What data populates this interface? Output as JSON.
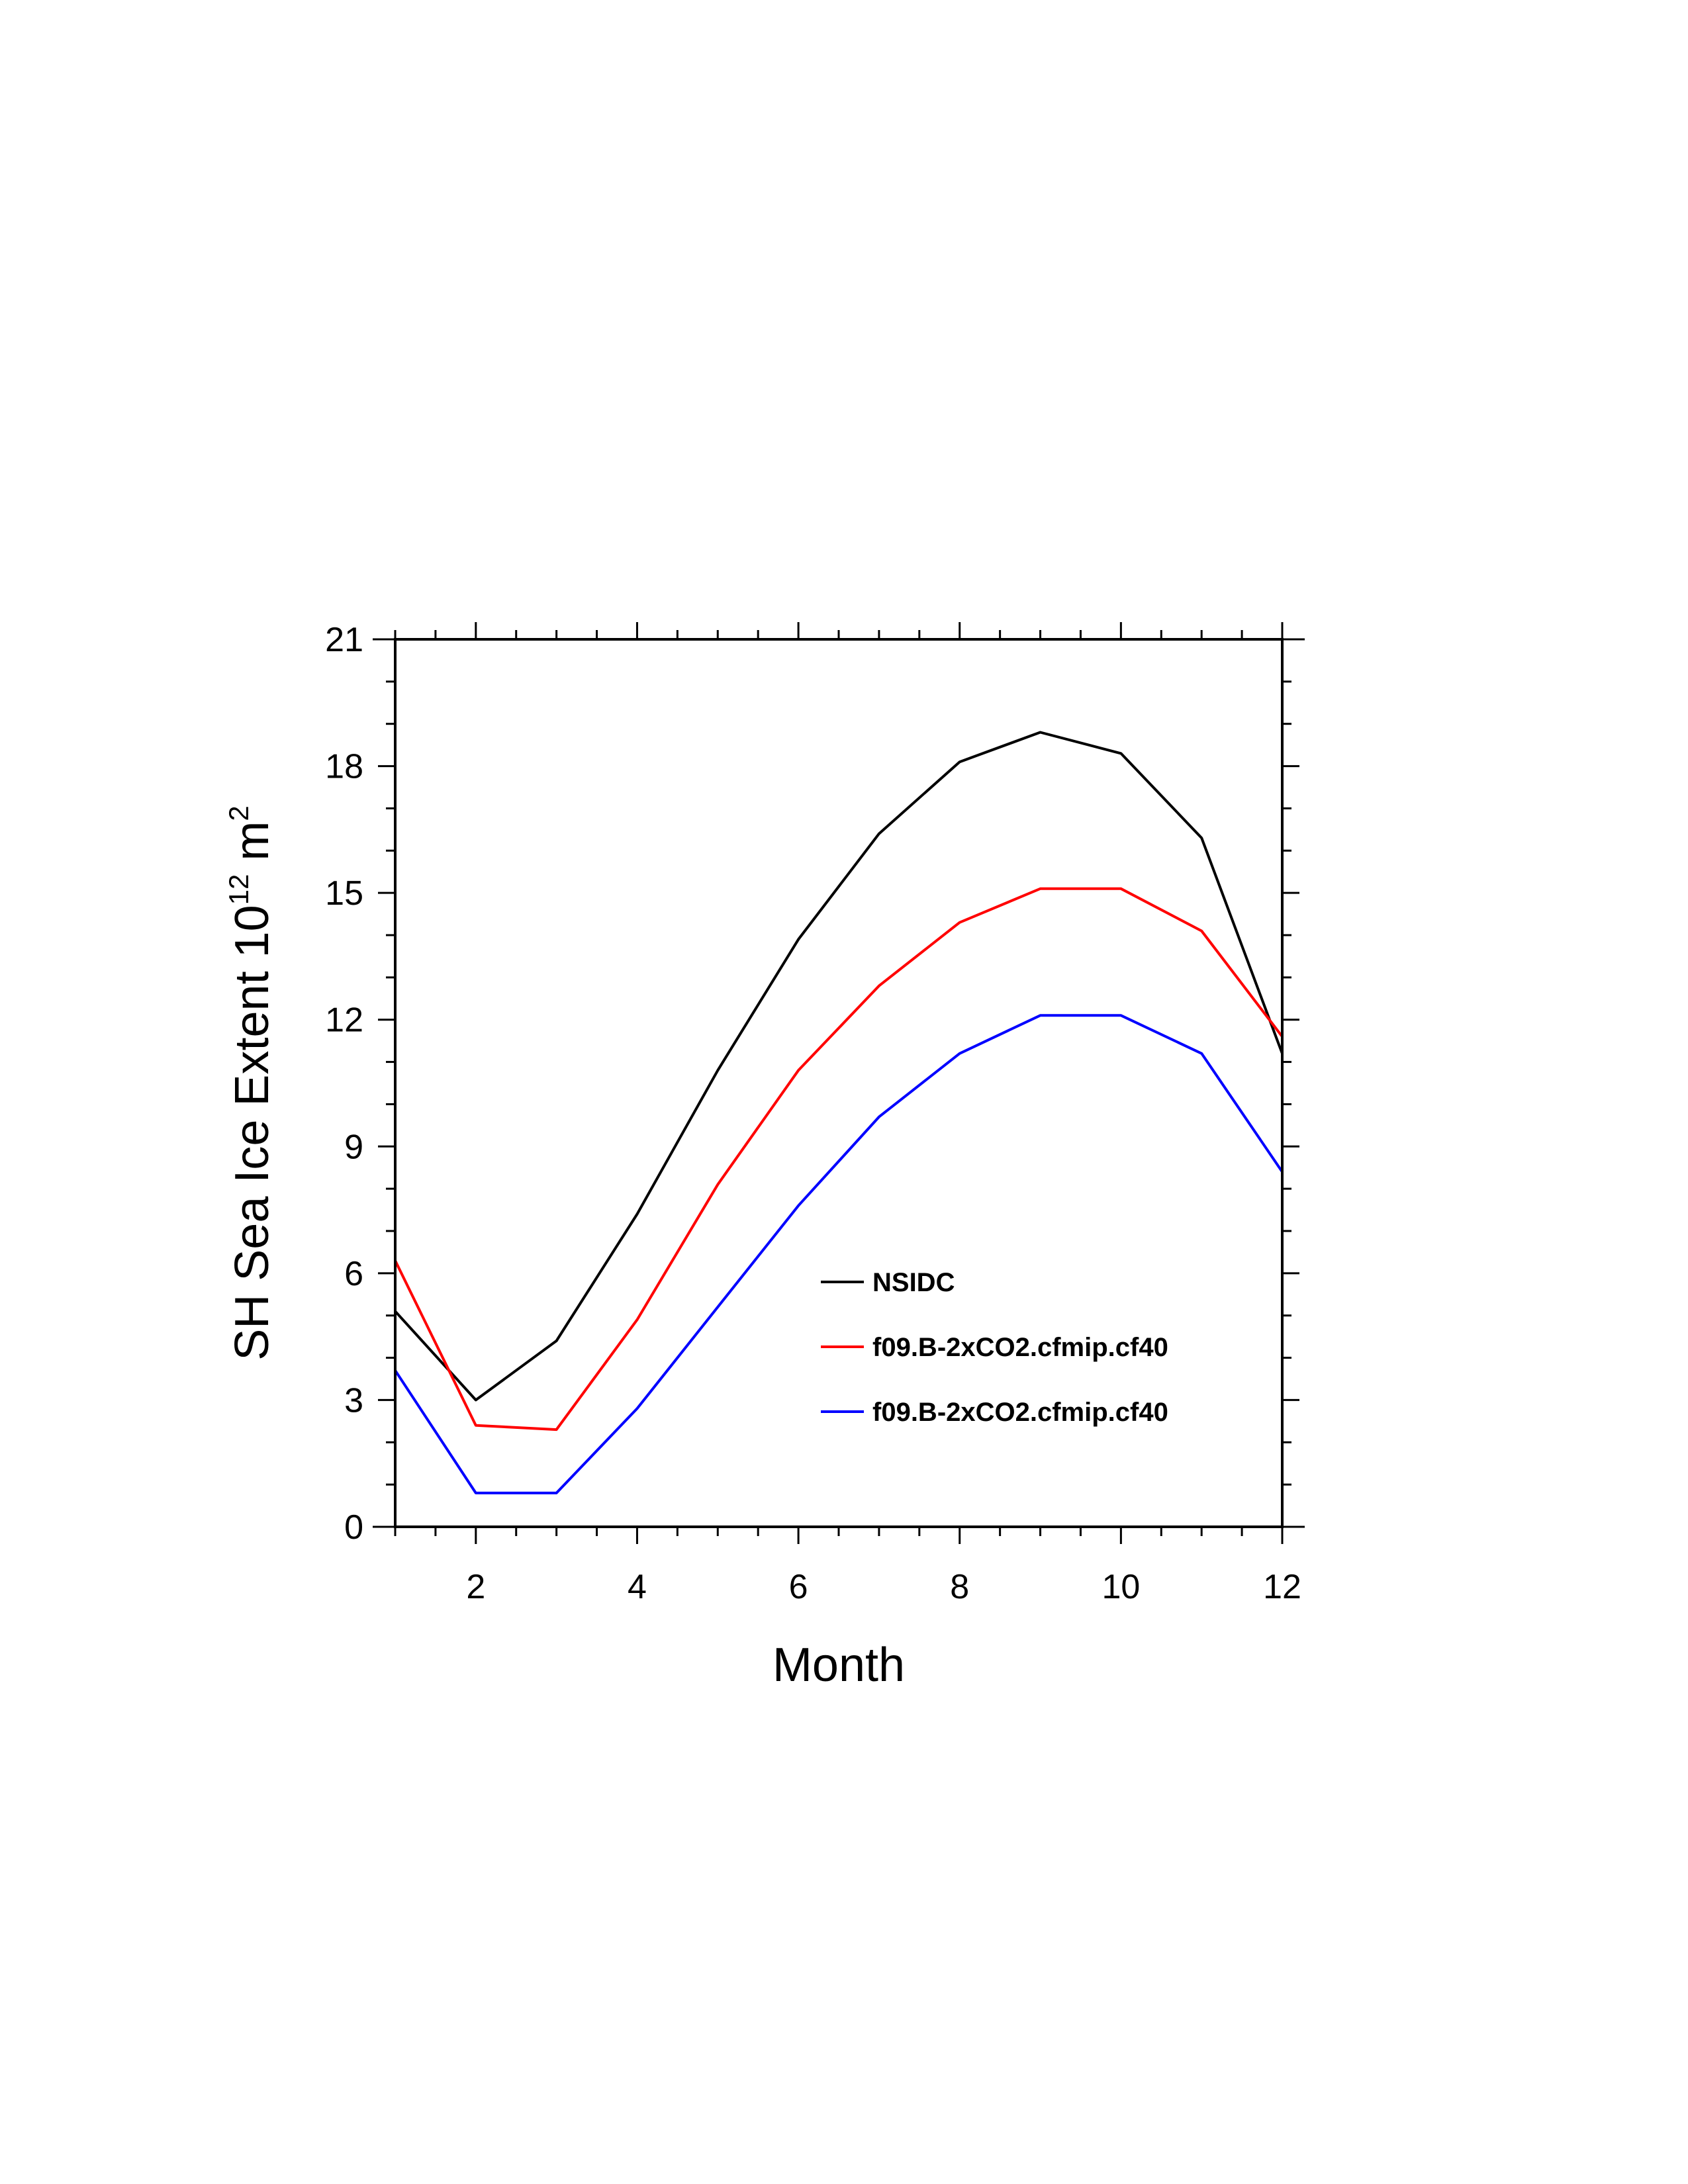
{
  "chart_data": {
    "type": "line",
    "xlabel": "Month",
    "ylabel_parts": {
      "text": "SH Sea Ice Extent 10",
      "sup1": "12",
      "unit": " m",
      "sup2": "2"
    },
    "x": [
      1,
      2,
      3,
      4,
      5,
      6,
      7,
      8,
      9,
      10,
      11,
      12
    ],
    "xlim": [
      1,
      12
    ],
    "ylim": [
      0,
      21
    ],
    "xticks": [
      2,
      4,
      6,
      8,
      10,
      12
    ],
    "yticks": [
      0,
      3,
      6,
      9,
      12,
      15,
      18,
      21
    ],
    "grid": false,
    "legend_position": "center-right",
    "series": [
      {
        "name": "NSIDC",
        "color": "#000000",
        "values": [
          5.1,
          3.0,
          4.4,
          7.4,
          10.8,
          13.9,
          16.4,
          18.1,
          18.8,
          18.3,
          16.3,
          11.2
        ]
      },
      {
        "name": "f09.B-2xCO2.cfmip.cf40",
        "color": "#ff0000",
        "values": [
          6.3,
          2.4,
          2.3,
          4.9,
          8.1,
          10.8,
          12.8,
          14.3,
          15.1,
          15.1,
          14.1,
          11.6
        ]
      },
      {
        "name": "f09.B-2xCO2.cfmip.cf40",
        "color": "#0000ff",
        "values": [
          3.7,
          0.8,
          0.8,
          2.8,
          5.2,
          7.6,
          9.7,
          11.2,
          12.1,
          12.1,
          11.2,
          8.4
        ]
      }
    ]
  }
}
